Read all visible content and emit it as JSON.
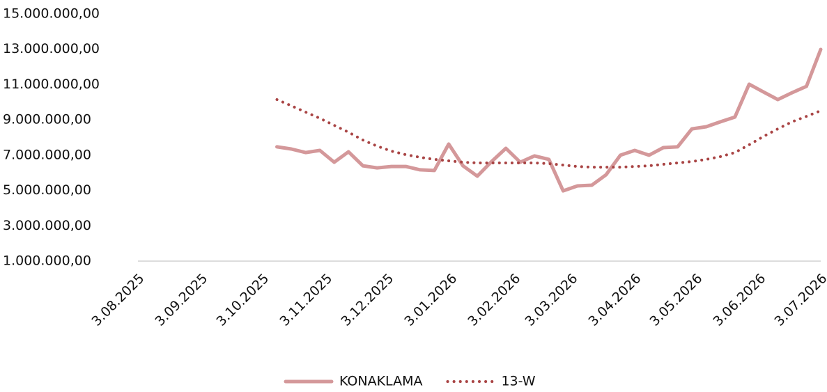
{
  "chart_data": {
    "type": "line",
    "x": [
      "2025-10-10",
      "2025-10-17",
      "2025-10-24",
      "2025-10-31",
      "2025-11-07",
      "2025-11-14",
      "2025-11-21",
      "2025-11-28",
      "2025-12-05",
      "2025-12-12",
      "2025-12-19",
      "2025-12-26",
      "2026-01-02",
      "2026-01-09",
      "2026-01-16",
      "2026-01-23",
      "2026-01-30",
      "2026-02-06",
      "2026-02-13",
      "2026-02-20",
      "2026-02-27",
      "2026-03-06",
      "2026-03-13",
      "2026-03-20",
      "2026-03-27",
      "2026-04-03",
      "2026-04-10",
      "2026-04-17",
      "2026-04-24",
      "2026-05-01",
      "2026-05-08",
      "2026-05-15",
      "2026-05-22",
      "2026-05-29",
      "2026-06-05",
      "2026-06-12",
      "2026-06-19",
      "2026-06-26",
      "2026-07-03"
    ],
    "series": [
      {
        "name": "KONAKLAMA",
        "color": "#d4989a",
        "style": "solid",
        "values": [
          7470000,
          7350000,
          7150000,
          7270000,
          6600000,
          7190000,
          6400000,
          6280000,
          6360000,
          6360000,
          6170000,
          6130000,
          7630000,
          6400000,
          5810000,
          6640000,
          7390000,
          6600000,
          6960000,
          6760000,
          4980000,
          5260000,
          5300000,
          5890000,
          7000000,
          7270000,
          7000000,
          7430000,
          7470000,
          8490000,
          8610000,
          8890000,
          9160000,
          11020000,
          10580000,
          10150000,
          10540000,
          10900000,
          12990000
        ]
      },
      {
        "name": "13-W",
        "color": "#a94444",
        "style": "dotted",
        "values": [
          10150000,
          9800000,
          9440000,
          9090000,
          8690000,
          8300000,
          7860000,
          7510000,
          7230000,
          7030000,
          6880000,
          6760000,
          6680000,
          6600000,
          6560000,
          6560000,
          6560000,
          6560000,
          6560000,
          6520000,
          6440000,
          6360000,
          6320000,
          6320000,
          6320000,
          6360000,
          6400000,
          6480000,
          6560000,
          6640000,
          6760000,
          6920000,
          7150000,
          7590000,
          8060000,
          8490000,
          8890000,
          9200000,
          9520000
        ]
      }
    ],
    "xlim": [
      "2025-08-03",
      "2026-07-03"
    ],
    "xticks": [
      {
        "value": "2025-08-03",
        "label": "3.08.2025"
      },
      {
        "value": "2025-09-03",
        "label": "3.09.2025"
      },
      {
        "value": "2025-10-03",
        "label": "3.10.2025"
      },
      {
        "value": "2025-11-03",
        "label": "3.11.2025"
      },
      {
        "value": "2025-12-03",
        "label": "3.12.2025"
      },
      {
        "value": "2026-01-03",
        "label": "3.01.2026"
      },
      {
        "value": "2026-02-03",
        "label": "3.02.2026"
      },
      {
        "value": "2026-03-03",
        "label": "3.03.2026"
      },
      {
        "value": "2026-04-03",
        "label": "3.04.2026"
      },
      {
        "value": "2026-05-03",
        "label": "3.05.2026"
      },
      {
        "value": "2026-06-03",
        "label": "3.06.2026"
      },
      {
        "value": "2026-07-03",
        "label": "3.07.2026"
      }
    ],
    "ylim": [
      1000000,
      15000000
    ],
    "yticks": [
      {
        "value": 1000000,
        "label": "1.000.000,00"
      },
      {
        "value": 3000000,
        "label": "3.000.000,00"
      },
      {
        "value": 5000000,
        "label": "5.000.000,00"
      },
      {
        "value": 7000000,
        "label": "7.000.000,00"
      },
      {
        "value": 9000000,
        "label": "9.000.000,00"
      },
      {
        "value": 11000000,
        "label": "11.000.000,00"
      },
      {
        "value": 13000000,
        "label": "13.000.000,00"
      },
      {
        "value": 15000000,
        "label": "15.000.000,00"
      }
    ],
    "grid": false,
    "legend": "bottom"
  }
}
